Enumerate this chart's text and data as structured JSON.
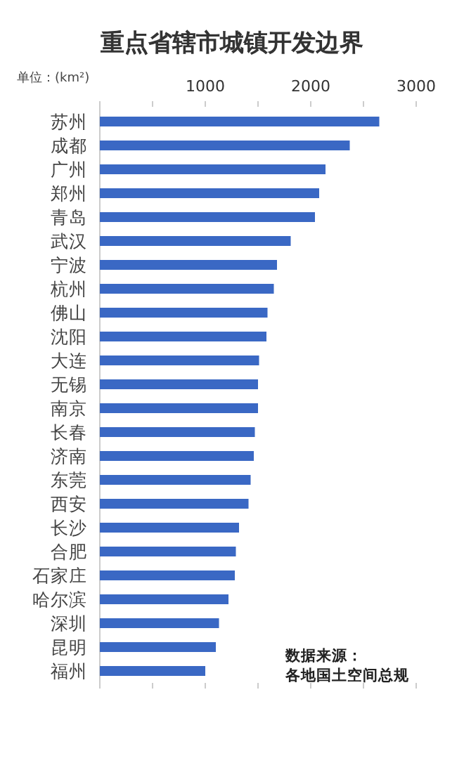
{
  "chart_data": {
    "type": "bar",
    "orientation": "horizontal",
    "title": "重点省辖市城镇开发边界",
    "xlabel": "单位：(km²)",
    "categories": [
      "苏州",
      "成都",
      "广州",
      "郑州",
      "青岛",
      "武汉",
      "宁波",
      "杭州",
      "佛山",
      "沈阳",
      "大连",
      "无锡",
      "南京",
      "长春",
      "济南",
      "东莞",
      "西安",
      "长沙",
      "合肥",
      "石家庄",
      "哈尔滨",
      "深圳",
      "昆明",
      "福州"
    ],
    "values": [
      2650,
      2370,
      2140,
      2080,
      2040,
      1810,
      1680,
      1650,
      1590,
      1580,
      1510,
      1500,
      1500,
      1470,
      1460,
      1430,
      1410,
      1320,
      1290,
      1280,
      1220,
      1130,
      1100,
      1000
    ],
    "color": "#3a68c4",
    "xlim": [
      0,
      3000
    ],
    "xticks": [
      {
        "value": 500,
        "label": null
      },
      1000,
      {
        "value": 1500,
        "label": null
      },
      2000,
      {
        "value": 2500,
        "label": null
      },
      3000
    ],
    "annotations": [
      "数据来源：",
      "各地国土空间总规"
    ]
  }
}
